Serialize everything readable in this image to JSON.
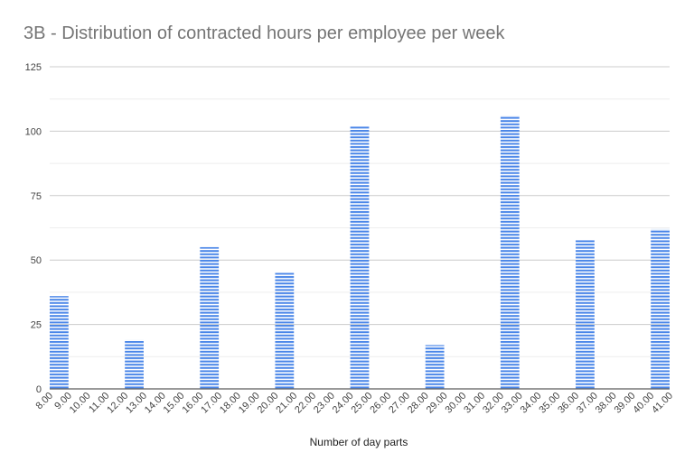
{
  "chart_data": {
    "type": "bar",
    "title": "3B - Distribution of contracted hours per employee per week",
    "xlabel": "Number of day parts",
    "ylabel": "",
    "ylim": [
      0,
      125
    ],
    "yticks": [
      0,
      25,
      50,
      75,
      100,
      125
    ],
    "grid": true,
    "legend": "none",
    "bar_color": "#4a86e8",
    "categories": [
      "8.00",
      "9.00",
      "10.00",
      "11.00",
      "12.00",
      "13.00",
      "14.00",
      "15.00",
      "16.00",
      "17.00",
      "18.00",
      "19.00",
      "20.00",
      "21.00",
      "22.00",
      "23.00",
      "24.00",
      "25.00",
      "26.00",
      "27.00",
      "28.00",
      "29.00",
      "30.00",
      "31.00",
      "32.00",
      "33.00",
      "34.00",
      "35.00",
      "36.00",
      "37.00",
      "38.00",
      "39.00",
      "40.00",
      "41.00"
    ],
    "bars": [
      {
        "from": "8.00",
        "to": "9.00",
        "value": 36
      },
      {
        "from": "12.00",
        "to": "13.00",
        "value": 19
      },
      {
        "from": "16.00",
        "to": "17.00",
        "value": 55
      },
      {
        "from": "20.00",
        "to": "21.00",
        "value": 45
      },
      {
        "from": "24.00",
        "to": "25.00",
        "value": 102
      },
      {
        "from": "28.00",
        "to": "29.00",
        "value": 17
      },
      {
        "from": "32.00",
        "to": "33.00",
        "value": 106
      },
      {
        "from": "36.00",
        "to": "37.00",
        "value": 58
      },
      {
        "from": "40.00",
        "to": "41.00",
        "value": 62
      }
    ]
  }
}
